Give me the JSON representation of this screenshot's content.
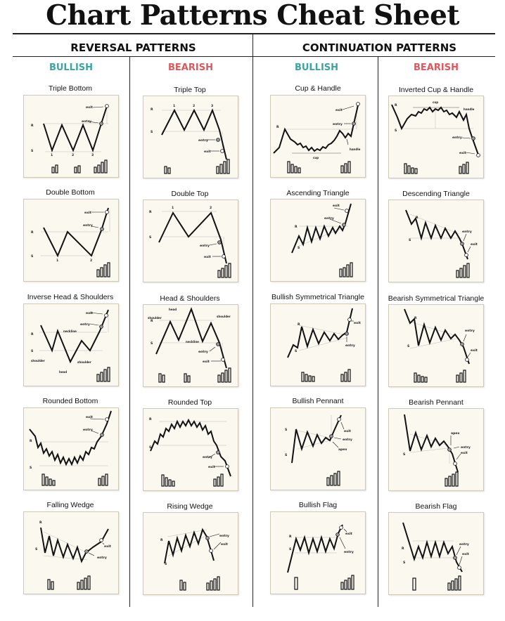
{
  "title": "Chart Patterns Cheat Sheet",
  "sections": [
    {
      "label": "REVERSAL PATTERNS"
    },
    {
      "label": "CONTINUATION PATTERNS"
    }
  ],
  "columns": [
    {
      "label": "BULLISH",
      "color": "#3aa5a2"
    },
    {
      "label": "BEARISH",
      "color": "#e0575b"
    },
    {
      "label": "BULLISH",
      "color": "#3aa5a2"
    },
    {
      "label": "BEARISH",
      "color": "#e0575b"
    }
  ],
  "panels": [
    {
      "title": "Triple Bottom",
      "annotations": {
        "R": "R",
        "S": "S",
        "b1": "1",
        "b2": "2",
        "b3": "3",
        "entry": "entry",
        "exit": "exit"
      }
    },
    {
      "title": "Triple Top",
      "annotations": {
        "R": "R",
        "S": "S",
        "t1": "1",
        "t2": "2",
        "t3": "3",
        "entry": "entry",
        "exit": "exit"
      }
    },
    {
      "title": "Cup & Handle",
      "annotations": {
        "R": "R",
        "exit": "exit",
        "entry": "entry",
        "handle": "handle",
        "cup": "cup"
      }
    },
    {
      "title": "Inverted Cup & Handle",
      "annotations": {
        "R": "R",
        "S": "S",
        "cup": "cup",
        "handle": "handle",
        "entry": "entry",
        "exit": "exit"
      }
    },
    {
      "title": "Double Bottom",
      "annotations": {
        "R": "R",
        "S": "S",
        "b1": "1",
        "b2": "2",
        "entry": "entry",
        "exit": "exit"
      }
    },
    {
      "title": "Double Top",
      "annotations": {
        "R": "R",
        "S": "S",
        "t1": "1",
        "t2": "2",
        "entry": "entry",
        "exit": "exit"
      }
    },
    {
      "title": "Ascending Triangle",
      "annotations": {
        "R": "R",
        "S": "S",
        "entry": "entry",
        "exit": "exit"
      }
    },
    {
      "title": "Descending Triangle",
      "annotations": {
        "R": "R",
        "S": "S",
        "entry": "entry",
        "exit": "exit"
      }
    },
    {
      "title": "Inverse Head & Shoulders",
      "annotations": {
        "R": "R",
        "S": "S",
        "neckline": "neckline",
        "shoulder_l": "shoulder",
        "head": "head",
        "shoulder_r": "shoulder",
        "entry": "entry",
        "exit": "exit"
      }
    },
    {
      "title": "Head & Shoulders",
      "annotations": {
        "R": "R",
        "S": "S",
        "head": "head",
        "shoulder_l": "shoulder",
        "shoulder_r": "shoulder",
        "neckline": "neckline",
        "entry": "entry",
        "exit": "exit"
      }
    },
    {
      "title": "Bullish Symmetrical Triangle",
      "annotations": {
        "R": "R",
        "S": "S",
        "exit": "exit",
        "entry": "entry"
      }
    },
    {
      "title": "Bearish Symmetrical Triangle",
      "annotations": {
        "R": "R",
        "S": "S",
        "entry": "entry",
        "exit": "exit"
      }
    },
    {
      "title": "Rounded Bottom",
      "annotations": {
        "R": "R",
        "S": "S",
        "entry": "entry",
        "exit": "exit"
      }
    },
    {
      "title": "Rounded Top",
      "annotations": {
        "R": "R",
        "S": "S",
        "entry": "entry",
        "exit": "exit"
      }
    },
    {
      "title": "Bullish Pennant",
      "annotations": {
        "S1": "S",
        "S2": "S",
        "exit": "exit",
        "entry": "entry",
        "apex": "apex"
      }
    },
    {
      "title": "Bearish Pennant",
      "annotations": {
        "S": "S",
        "apex": "apex",
        "entry": "entry",
        "exit": "exit"
      }
    },
    {
      "title": "Falling Wedge",
      "annotations": {
        "R": "R",
        "S": "S",
        "exit": "exit",
        "entry": "entry"
      }
    },
    {
      "title": "Rising Wedge",
      "annotations": {
        "R": "R",
        "S": "S",
        "entry": "entry",
        "exit": "exit"
      }
    },
    {
      "title": "Bullish Flag",
      "annotations": {
        "R": "R",
        "S": "S",
        "exit": "exit",
        "entry": "entry"
      }
    },
    {
      "title": "Bearish Flag",
      "annotations": {
        "R": "R",
        "S": "S",
        "entry": "entry",
        "exit": "exit"
      }
    }
  ]
}
